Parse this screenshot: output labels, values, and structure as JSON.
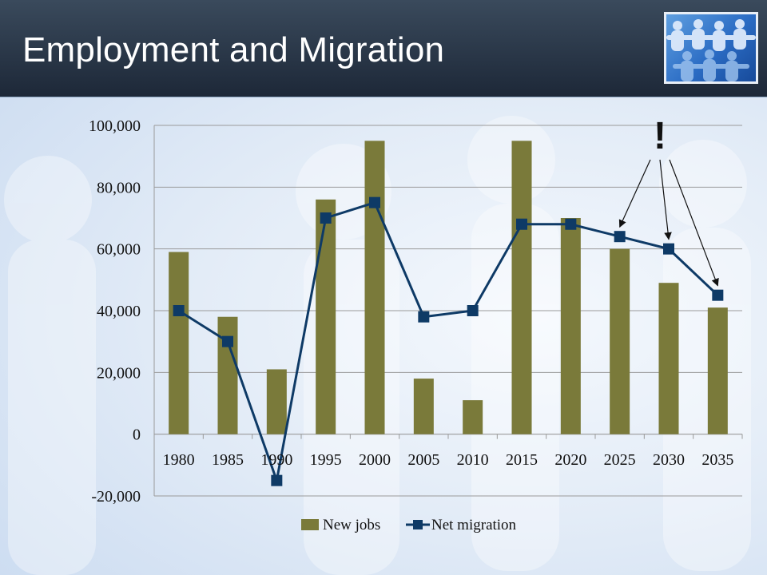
{
  "slide": {
    "title": "Employment and Migration"
  },
  "logo": {
    "icon": "paper-people-chain-icon"
  },
  "colors": {
    "bar": "#7a7a3a",
    "line": "#0e3a66",
    "header_dark": "#1d2838",
    "grid": "#9a9a9a"
  },
  "chart_data": {
    "type": "bar",
    "title": "",
    "xlabel": "",
    "ylabel": "",
    "categories": [
      "1980",
      "1985",
      "1990",
      "1995",
      "2000",
      "2005",
      "2010",
      "2015",
      "2020",
      "2025",
      "2030",
      "2035"
    ],
    "ylim": [
      -20000,
      100000
    ],
    "yticks": [
      -20000,
      0,
      20000,
      40000,
      60000,
      80000,
      100000
    ],
    "ytick_labels": [
      "-20,000",
      "0",
      "20,000",
      "40,000",
      "60,000",
      "80,000",
      "100,000"
    ],
    "grid": true,
    "legend_position": "bottom",
    "series": [
      {
        "name": "New jobs",
        "type": "bar",
        "values": [
          59000,
          38000,
          21000,
          76000,
          95000,
          18000,
          11000,
          95000,
          70000,
          60000,
          49000,
          41000
        ]
      },
      {
        "name": "Net migration",
        "type": "line",
        "marker": "square",
        "values": [
          40000,
          30000,
          -15000,
          70000,
          75000,
          38000,
          40000,
          68000,
          68000,
          64000,
          60000,
          45000
        ]
      }
    ],
    "annotation": {
      "text": "!",
      "points_to": [
        "2025",
        "2030",
        "2035"
      ]
    }
  }
}
